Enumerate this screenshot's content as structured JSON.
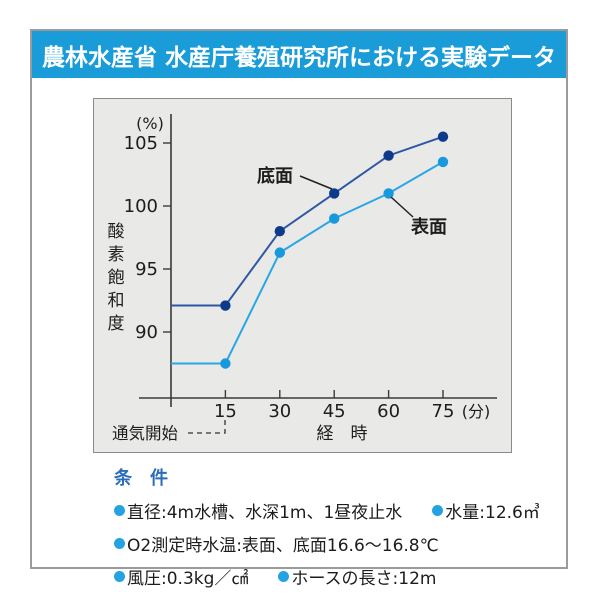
{
  "header": {
    "title": "農林水産省 水産庁養殖研究所における実験データ",
    "bg_color": "#1a9cd8",
    "text_color": "#ffffff"
  },
  "chart_data": {
    "type": "line",
    "title": "",
    "ylabel": "酸素飽和度",
    "y_unit_label": "(%)",
    "xlabel": "経　時",
    "x_unit_label": "(分)",
    "x_start_annotation": "通気開始",
    "x": [
      0,
      15,
      30,
      45,
      60,
      75
    ],
    "x_ticks": [
      15,
      30,
      45,
      60,
      75
    ],
    "y_ticks": [
      105,
      100,
      95,
      90
    ],
    "ylim": [
      86.5,
      107
    ],
    "xlim": [
      0,
      90
    ],
    "grid": false,
    "legend_position": "inline-annotations",
    "panel_bg": "#e9e9e7",
    "axis_color": "#3a3a3a",
    "series": [
      {
        "name": "底面",
        "line_color": "#2e57a6",
        "marker_color": "#0e3a8c",
        "values": [
          92.1,
          92.1,
          98,
          101,
          104,
          105.5
        ]
      },
      {
        "name": "表面",
        "line_color": "#2ba6e4",
        "marker_color": "#1899dd",
        "values": [
          87.5,
          87.5,
          96.3,
          99,
          101,
          103.5
        ]
      }
    ]
  },
  "conditions": {
    "title": "条　件",
    "accent_color": "#2a6db8",
    "bullet_color": "#25a2e2",
    "rows": [
      {
        "items": [
          {
            "label": "直径:4m水槽、水深1m、1昼夜止水"
          },
          {
            "label": "水量:12.6㎥"
          }
        ]
      },
      {
        "items": [
          {
            "label": "O2測定時水温:表面、底面16.6〜16.8℃"
          }
        ]
      },
      {
        "items": [
          {
            "label": "風圧:0.3kg／㎠"
          },
          {
            "label": "ホースの長さ:12m"
          }
        ]
      }
    ]
  }
}
